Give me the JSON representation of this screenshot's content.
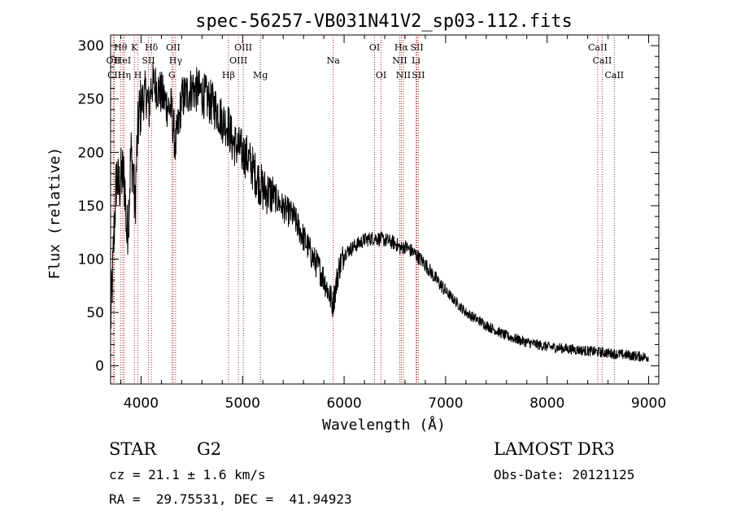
{
  "chart_data": {
    "type": "line",
    "title": "spec-56257-VB031N41V2_sp03-112.fits",
    "xlabel": "Wavelength (Å)",
    "ylabel": "Flux (relative)",
    "xlim": [
      3700,
      9100
    ],
    "ylim": [
      -17,
      310
    ],
    "x_ticks": [
      4000,
      5000,
      6000,
      7000,
      8000,
      9000
    ],
    "x_tick_labels": [
      "4000",
      "5000",
      "6000",
      "7000",
      "8000",
      "9000"
    ],
    "y_ticks": [
      0,
      50,
      100,
      150,
      200,
      250,
      300
    ],
    "y_tick_labels": [
      "0",
      "50",
      "100",
      "150",
      "200",
      "250",
      "300"
    ],
    "line_color": "#000000",
    "marker_color": "#b22222",
    "series": [
      {
        "name": "flux",
        "x": [
          3700,
          3720,
          3740,
          3760,
          3780,
          3800,
          3820,
          3840,
          3860,
          3880,
          3900,
          3920,
          3940,
          3960,
          3980,
          4000,
          4020,
          4040,
          4060,
          4080,
          4100,
          4150,
          4200,
          4250,
          4300,
          4340,
          4400,
          4450,
          4500,
          4550,
          4600,
          4650,
          4700,
          4750,
          4800,
          4860,
          4900,
          4950,
          5000,
          5050,
          5100,
          5150,
          5200,
          5300,
          5400,
          5500,
          5600,
          5700,
          5750,
          5800,
          5850,
          5890,
          5950,
          6000,
          6100,
          6200,
          6300,
          6400,
          6500,
          6560,
          6600,
          6700,
          6800,
          6900,
          7000,
          7200,
          7400,
          7600,
          7800,
          8000,
          8200,
          8400,
          8600,
          8800,
          9000
        ],
        "y": [
          40,
          85,
          140,
          180,
          165,
          175,
          180,
          170,
          120,
          150,
          200,
          185,
          145,
          205,
          235,
          245,
          250,
          255,
          252,
          240,
          265,
          262,
          255,
          245,
          240,
          205,
          250,
          255,
          260,
          258,
          255,
          250,
          245,
          240,
          230,
          225,
          210,
          205,
          200,
          195,
          185,
          175,
          165,
          160,
          148,
          140,
          120,
          100,
          92,
          82,
          68,
          58,
          92,
          105,
          112,
          118,
          120,
          118,
          115,
          110,
          112,
          105,
          95,
          82,
          70,
          50,
          38,
          28,
          22,
          18,
          16,
          14,
          12,
          10,
          8
        ]
      }
    ],
    "line_markers": [
      {
        "label": "Hθ",
        "x": 3798,
        "row": 1
      },
      {
        "label": "OII",
        "x": 3727,
        "row": 2
      },
      {
        "label": "HeI",
        "x": 3820,
        "row": 2
      },
      {
        "label": "CII",
        "x": 3736,
        "row": 3
      },
      {
        "label": "Hη",
        "x": 3835,
        "row": 3
      },
      {
        "label": "K",
        "x": 3934,
        "row": 1
      },
      {
        "label": "H",
        "x": 3969,
        "row": 3
      },
      {
        "label": "SII",
        "x": 4072,
        "row": 2
      },
      {
        "label": "Hδ",
        "x": 4102,
        "row": 1
      },
      {
        "label": "OII",
        "x": 4317,
        "row": 1
      },
      {
        "label": "Hγ",
        "x": 4340,
        "row": 2
      },
      {
        "label": "G",
        "x": 4304,
        "row": 3
      },
      {
        "label": "Hβ",
        "x": 4861,
        "row": 3
      },
      {
        "label": "OIII",
        "x": 4959,
        "row": 2
      },
      {
        "label": "OIII",
        "x": 5007,
        "row": 1
      },
      {
        "label": "Mg",
        "x": 5175,
        "row": 3
      },
      {
        "label": "Na",
        "x": 5893,
        "row": 2
      },
      {
        "label": "OI",
        "x": 6300,
        "row": 1
      },
      {
        "label": "OI",
        "x": 6364,
        "row": 3
      },
      {
        "label": "Hα",
        "x": 6563,
        "row": 1
      },
      {
        "label": "NII",
        "x": 6548,
        "row": 2
      },
      {
        "label": "NII",
        "x": 6584,
        "row": 3
      },
      {
        "label": "SII",
        "x": 6717,
        "row": 1
      },
      {
        "label": "Li",
        "x": 6708,
        "row": 2
      },
      {
        "label": "SII",
        "x": 6731,
        "row": 3
      },
      {
        "label": "CaII",
        "x": 8498,
        "row": 1
      },
      {
        "label": "CaII",
        "x": 8542,
        "row": 2
      },
      {
        "label": "CaII",
        "x": 8662,
        "row": 3
      }
    ]
  },
  "info": {
    "object_class": "STAR",
    "subclass": "G2",
    "survey": "LAMOST DR3",
    "redshift": "cz = 21.1 ± 1.6 km/s",
    "obs_date": "Obs-Date: 20121125",
    "coords": "RA =  29.75531, DEC =  41.94923"
  }
}
